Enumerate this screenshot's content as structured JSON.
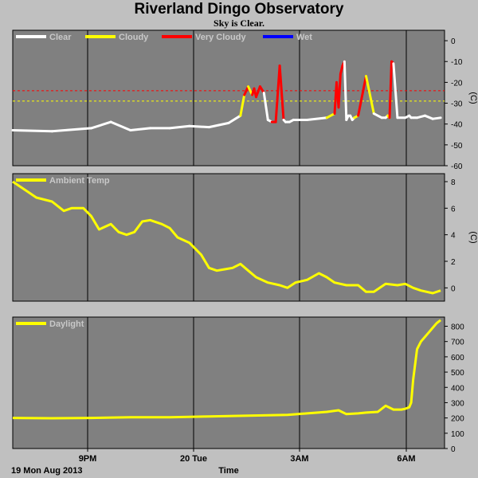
{
  "title": "Riverland Dingo Observatory",
  "subtitle": "Sky is Clear.",
  "footer": {
    "date_label": "19 Mon Aug 2013",
    "xlabel": "Time"
  },
  "colors": {
    "clear": "#ffffff",
    "cloudy": "#ffff00",
    "very_cloudy": "#ff0000",
    "wet": "#0000ff",
    "panel": "#808080",
    "grid": "#000000"
  },
  "x_ticks": [
    "9PM",
    "20 Tue",
    "3AM",
    "6AM"
  ],
  "chart_data": [
    {
      "type": "line",
      "ylabel": "(C)",
      "ylim": [
        -60,
        5
      ],
      "yticks": [
        0,
        -10,
        -20,
        -30,
        -40,
        -50,
        -60
      ],
      "legend": [
        "Clear",
        "Cloudy",
        "Very Cloudy",
        "Wet"
      ],
      "thresholds": [
        {
          "value": -24,
          "color": "#ff0000"
        },
        {
          "value": -29,
          "color": "#ffff00"
        }
      ],
      "x": [
        0,
        1,
        2,
        2.5,
        3,
        3.5,
        4,
        4.5,
        5,
        5.5,
        5.8,
        5.9,
        6,
        6.1,
        6.15,
        6.2,
        6.3,
        6.4,
        6.5,
        6.6,
        6.7,
        6.8,
        6.9,
        6.95,
        7.0,
        7.05,
        7.1,
        7.15,
        7.2,
        7.5,
        8,
        8.2,
        8.25,
        8.3,
        8.35,
        8.4,
        8.45,
        8.5,
        8.55,
        8.6,
        8.65,
        8.7,
        8.8,
        9.0,
        9.2,
        9.4,
        9.5,
        9.55,
        9.6,
        9.65,
        9.7,
        9.8,
        10.0,
        10.1,
        10.15,
        10.2,
        10.25,
        10.3,
        10.5,
        10.7,
        10.9
      ],
      "y": [
        -43,
        -43.5,
        -42,
        -39,
        -43,
        -42,
        -42,
        -41,
        -41.5,
        -39.5,
        -36,
        -26,
        -22,
        -26,
        -23,
        -27,
        -22,
        -25,
        -38,
        -39,
        -39,
        -12,
        -38,
        -39,
        -39,
        -39,
        -38.5,
        -38,
        -38,
        -38,
        -37,
        -35,
        -20,
        -32,
        -16,
        -12,
        -10,
        -38,
        -36,
        -36,
        -38,
        -37,
        -36,
        -17,
        -35,
        -37,
        -37,
        -36,
        -37,
        -10,
        -11,
        -37,
        -37,
        -36,
        -37,
        -37,
        -37,
        -37,
        -36,
        -37.5,
        -37
      ],
      "category": [
        "clear",
        "clear",
        "clear",
        "clear",
        "clear",
        "clear",
        "clear",
        "clear",
        "clear",
        "clear",
        "clear",
        "cloudy",
        "very_cloudy",
        "cloudy",
        "very_cloudy",
        "very_cloudy",
        "very_cloudy",
        "very_cloudy",
        "clear",
        "clear",
        "very_cloudy",
        "very_cloudy",
        "very_cloudy",
        "clear",
        "clear",
        "clear",
        "clear",
        "clear",
        "clear",
        "clear",
        "clear",
        "cloudy",
        "very_cloudy",
        "very_cloudy",
        "very_cloudy",
        "very_cloudy",
        "very_cloudy",
        "clear",
        "clear",
        "clear",
        "clear",
        "clear",
        "cloudy",
        "very_cloudy",
        "cloudy",
        "clear",
        "clear",
        "clear",
        "cloudy",
        "very_cloudy",
        "very_cloudy",
        "clear",
        "clear",
        "clear",
        "clear",
        "clear",
        "clear",
        "clear",
        "clear",
        "clear",
        "clear"
      ]
    },
    {
      "type": "line",
      "ylabel": "(C)",
      "ylim": [
        -1,
        8.6
      ],
      "yticks": [
        8,
        6,
        4,
        2,
        0
      ],
      "legend": [
        "Ambient Temp"
      ],
      "series": [
        {
          "name": "Ambient Temp",
          "color": "#ffff00",
          "x": [
            0,
            0.4,
            0.6,
            1.0,
            1.3,
            1.5,
            1.8,
            2.0,
            2.2,
            2.5,
            2.7,
            2.9,
            3.1,
            3.3,
            3.5,
            3.8,
            4.0,
            4.2,
            4.5,
            4.8,
            5.0,
            5.2,
            5.4,
            5.6,
            5.8,
            6.0,
            6.2,
            6.5,
            6.8,
            7.0,
            7.2,
            7.5,
            7.8,
            8.0,
            8.2,
            8.5,
            8.8,
            9.0,
            9.2,
            9.5,
            9.8,
            10.0,
            10.2,
            10.4,
            10.7,
            10.9
          ],
          "y": [
            8.0,
            7.2,
            6.8,
            6.5,
            5.8,
            6.0,
            6.0,
            5.4,
            4.4,
            4.8,
            4.2,
            4.0,
            4.2,
            5.0,
            5.1,
            4.8,
            4.5,
            3.8,
            3.4,
            2.5,
            1.5,
            1.3,
            1.4,
            1.5,
            1.8,
            1.3,
            0.8,
            0.4,
            0.2,
            0.0,
            0.4,
            0.6,
            1.1,
            0.8,
            0.4,
            0.2,
            0.2,
            -0.3,
            -0.3,
            0.3,
            0.2,
            0.3,
            0.0,
            -0.2,
            -0.4,
            -0.2
          ]
        }
      ]
    },
    {
      "type": "line",
      "ylabel": "",
      "ylim": [
        0,
        860
      ],
      "yticks": [
        800,
        700,
        600,
        500,
        400,
        300,
        200,
        100,
        0
      ],
      "legend": [
        "Daylight"
      ],
      "series": [
        {
          "name": "Daylight",
          "color": "#ffff00",
          "x": [
            0,
            1,
            2,
            3,
            4,
            5,
            6,
            7,
            7.5,
            8.0,
            8.3,
            8.5,
            8.8,
            9.0,
            9.3,
            9.5,
            9.7,
            9.9,
            10.0,
            10.1,
            10.15,
            10.2,
            10.3,
            10.4,
            10.5,
            10.6,
            10.7,
            10.8,
            10.9
          ],
          "y": [
            200,
            198,
            200,
            205,
            205,
            210,
            215,
            220,
            230,
            240,
            250,
            225,
            230,
            235,
            240,
            280,
            255,
            255,
            260,
            270,
            300,
            450,
            650,
            700,
            730,
            760,
            790,
            820,
            840
          ]
        }
      ]
    }
  ]
}
